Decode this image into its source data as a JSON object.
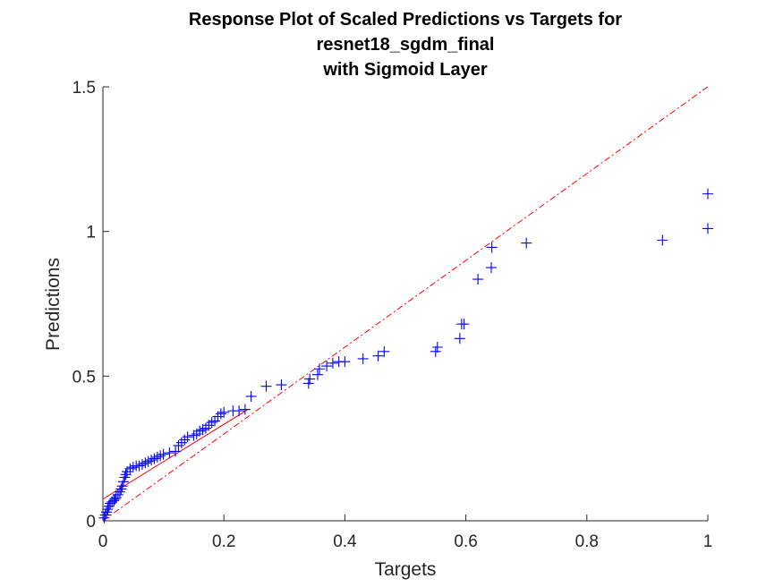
{
  "chart_data": {
    "type": "scatter",
    "title": [
      "Response Plot of Scaled Predictions vs Targets for",
      "resnet18_sgdm_final",
      "with Sigmoid Layer"
    ],
    "xlabel": "Targets",
    "ylabel": "Predictions",
    "xlim": [
      0,
      1
    ],
    "ylim": [
      0,
      1.5
    ],
    "xticks": [
      0,
      0.2,
      0.4,
      0.6,
      0.8,
      1
    ],
    "xtick_labels": [
      "0",
      "0.2",
      "0.4",
      "0.6",
      "0.8",
      "1"
    ],
    "yticks": [
      0,
      0.5,
      1,
      1.5
    ],
    "ytick_labels": [
      "0",
      "0.5",
      "1",
      "1.5"
    ],
    "grid": false,
    "legend": "none",
    "reference_lines": [
      {
        "style": "solid",
        "color": "#ff0000",
        "points": [
          [
            0,
            0.075
          ],
          [
            0.24,
            0.385
          ]
        ]
      },
      {
        "style": "dash-dot",
        "color": "#ff0000",
        "points": [
          [
            0,
            0
          ],
          [
            1,
            1.5
          ]
        ]
      }
    ],
    "series": [
      {
        "marker": "+",
        "color": "#0000ff",
        "points": [
          [
            0.002,
            0.01
          ],
          [
            0.004,
            0.02
          ],
          [
            0.006,
            0.03
          ],
          [
            0.008,
            0.04
          ],
          [
            0.01,
            0.05
          ],
          [
            0.012,
            0.06
          ],
          [
            0.015,
            0.065
          ],
          [
            0.018,
            0.07
          ],
          [
            0.02,
            0.075
          ],
          [
            0.022,
            0.08
          ],
          [
            0.025,
            0.09
          ],
          [
            0.028,
            0.1
          ],
          [
            0.03,
            0.11
          ],
          [
            0.032,
            0.12
          ],
          [
            0.034,
            0.135
          ],
          [
            0.036,
            0.15
          ],
          [
            0.038,
            0.16
          ],
          [
            0.04,
            0.17
          ],
          [
            0.045,
            0.18
          ],
          [
            0.05,
            0.185
          ],
          [
            0.055,
            0.19
          ],
          [
            0.06,
            0.19
          ],
          [
            0.065,
            0.195
          ],
          [
            0.07,
            0.2
          ],
          [
            0.075,
            0.205
          ],
          [
            0.08,
            0.21
          ],
          [
            0.085,
            0.215
          ],
          [
            0.09,
            0.22
          ],
          [
            0.095,
            0.225
          ],
          [
            0.1,
            0.23
          ],
          [
            0.11,
            0.235
          ],
          [
            0.12,
            0.24
          ],
          [
            0.125,
            0.26
          ],
          [
            0.13,
            0.27
          ],
          [
            0.135,
            0.28
          ],
          [
            0.14,
            0.29
          ],
          [
            0.15,
            0.295
          ],
          [
            0.155,
            0.3
          ],
          [
            0.16,
            0.31
          ],
          [
            0.165,
            0.315
          ],
          [
            0.17,
            0.32
          ],
          [
            0.175,
            0.33
          ],
          [
            0.18,
            0.34
          ],
          [
            0.185,
            0.345
          ],
          [
            0.19,
            0.36
          ],
          [
            0.195,
            0.37
          ],
          [
            0.2,
            0.375
          ],
          [
            0.215,
            0.38
          ],
          [
            0.225,
            0.38
          ],
          [
            0.235,
            0.385
          ],
          [
            0.245,
            0.43
          ],
          [
            0.27,
            0.465
          ],
          [
            0.295,
            0.47
          ],
          [
            0.34,
            0.475
          ],
          [
            0.342,
            0.49
          ],
          [
            0.355,
            0.505
          ],
          [
            0.358,
            0.525
          ],
          [
            0.37,
            0.535
          ],
          [
            0.38,
            0.545
          ],
          [
            0.39,
            0.55
          ],
          [
            0.4,
            0.55
          ],
          [
            0.43,
            0.56
          ],
          [
            0.455,
            0.57
          ],
          [
            0.465,
            0.585
          ],
          [
            0.55,
            0.585
          ],
          [
            0.553,
            0.6
          ],
          [
            0.59,
            0.63
          ],
          [
            0.593,
            0.68
          ],
          [
            0.597,
            0.68
          ],
          [
            0.62,
            0.835
          ],
          [
            0.642,
            0.875
          ],
          [
            0.643,
            0.945
          ],
          [
            0.7,
            0.96
          ],
          [
            0.925,
            0.97
          ],
          [
            1.0,
            1.01
          ],
          [
            1.0,
            1.13
          ]
        ]
      }
    ]
  }
}
